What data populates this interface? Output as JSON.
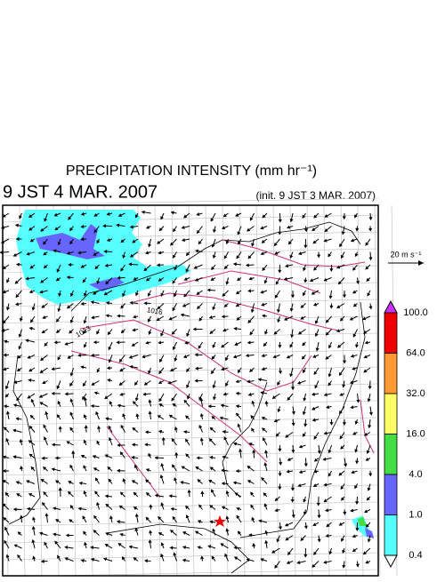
{
  "figure": {
    "title": "PRECIPITATION INTENSITY (mm hr⁻¹)",
    "valid_time": "9 JST 4 MAR. 2007",
    "init_time": "(init. 9 JST 3 MAR. 2007)",
    "wind_scale": "20 m s⁻¹",
    "isobar_labels": [
      "1016",
      "1013"
    ],
    "colorbar": {
      "labels": [
        "100.0",
        "64.0",
        "32.0",
        "16.0",
        "4.0",
        "1.0",
        "0.4"
      ],
      "colors": [
        "#cc33ff",
        "#ee0000",
        "#ff9933",
        "#ffff66",
        "#44dd44",
        "#6666ff",
        "#55ffff",
        "#ffffff"
      ]
    }
  }
}
